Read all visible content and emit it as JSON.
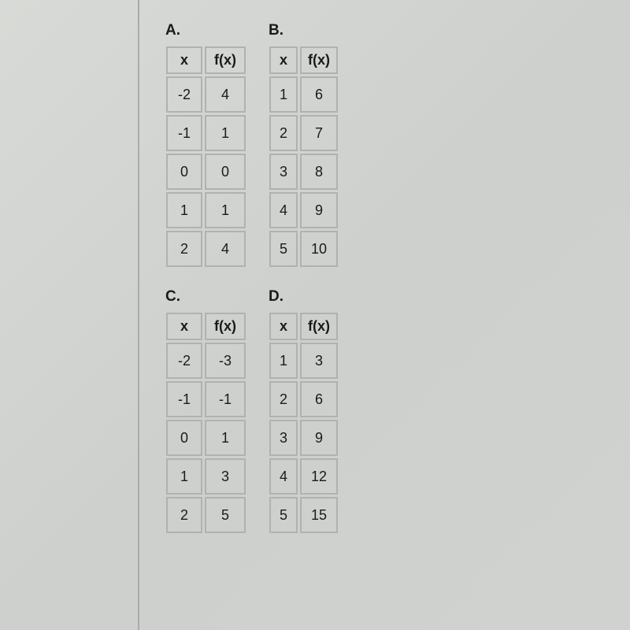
{
  "tables": [
    {
      "label": "A.",
      "widthClass": "wide",
      "columns": [
        "x",
        "f(x)"
      ],
      "rows": [
        [
          "-2",
          "4"
        ],
        [
          "-1",
          "1"
        ],
        [
          "0",
          "0"
        ],
        [
          "1",
          "1"
        ],
        [
          "2",
          "4"
        ]
      ]
    },
    {
      "label": "B.",
      "widthClass": "narrow",
      "columns": [
        "x",
        "f(x)"
      ],
      "rows": [
        [
          "1",
          "6"
        ],
        [
          "2",
          "7"
        ],
        [
          "3",
          "8"
        ],
        [
          "4",
          "9"
        ],
        [
          "5",
          "10"
        ]
      ]
    },
    {
      "label": "C.",
      "widthClass": "wide",
      "columns": [
        "x",
        "f(x)"
      ],
      "rows": [
        [
          "-2",
          "-3"
        ],
        [
          "-1",
          "-1"
        ],
        [
          "0",
          "1"
        ],
        [
          "1",
          "3"
        ],
        [
          "2",
          "5"
        ]
      ]
    },
    {
      "label": "D.",
      "widthClass": "narrow",
      "columns": [
        "x",
        "f(x)"
      ],
      "rows": [
        [
          "1",
          "3"
        ],
        [
          "2",
          "6"
        ],
        [
          "3",
          "9"
        ],
        [
          "4",
          "12"
        ],
        [
          "5",
          "15"
        ]
      ]
    }
  ]
}
